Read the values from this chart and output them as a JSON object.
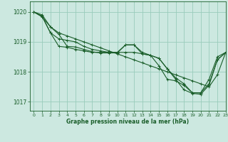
{
  "title": "Graphe pression niveau de la mer (hPa)",
  "background_color": "#cce8e0",
  "grid_color": "#99ccbb",
  "line_color": "#1a5e2a",
  "text_color": "#1a5e2a",
  "xlim": [
    -0.5,
    23
  ],
  "ylim": [
    1016.7,
    1020.35
  ],
  "yticks": [
    1017,
    1018,
    1019,
    1020
  ],
  "xticks": [
    0,
    1,
    2,
    3,
    4,
    5,
    6,
    7,
    8,
    9,
    10,
    11,
    12,
    13,
    14,
    15,
    16,
    17,
    18,
    19,
    20,
    21,
    22,
    23
  ],
  "series": [
    [
      1020.0,
      1019.9,
      1019.5,
      1019.25,
      1018.85,
      1018.83,
      1018.75,
      1018.67,
      1018.63,
      1018.63,
      1018.63,
      1018.9,
      1018.9,
      1018.65,
      1018.55,
      1018.2,
      1017.75,
      1017.7,
      1017.55,
      1017.3,
      1017.3,
      1017.75,
      1018.5,
      1018.65
    ],
    [
      1020.0,
      1019.85,
      1019.3,
      1019.1,
      1019.05,
      1019.0,
      1018.85,
      1018.75,
      1018.7,
      1018.65,
      1018.65,
      1018.9,
      1018.9,
      1018.6,
      1018.55,
      1018.45,
      1018.1,
      1017.8,
      1017.6,
      1017.3,
      1017.3,
      1017.6,
      1018.4,
      1018.65
    ],
    [
      1020.0,
      1019.85,
      1019.3,
      1018.85,
      1018.82,
      1018.75,
      1018.7,
      1018.65,
      1018.65,
      1018.65,
      1018.65,
      1018.65,
      1018.65,
      1018.6,
      1018.55,
      1018.45,
      1018.1,
      1017.75,
      1017.4,
      1017.28,
      1017.25,
      1017.55,
      1018.4,
      1018.65
    ],
    [
      1020.0,
      1019.83,
      1019.5,
      1019.3,
      1019.2,
      1019.1,
      1019.0,
      1018.9,
      1018.8,
      1018.7,
      1018.6,
      1018.5,
      1018.4,
      1018.3,
      1018.2,
      1018.1,
      1018.0,
      1017.9,
      1017.8,
      1017.7,
      1017.6,
      1017.5,
      1017.9,
      1018.65
    ]
  ]
}
